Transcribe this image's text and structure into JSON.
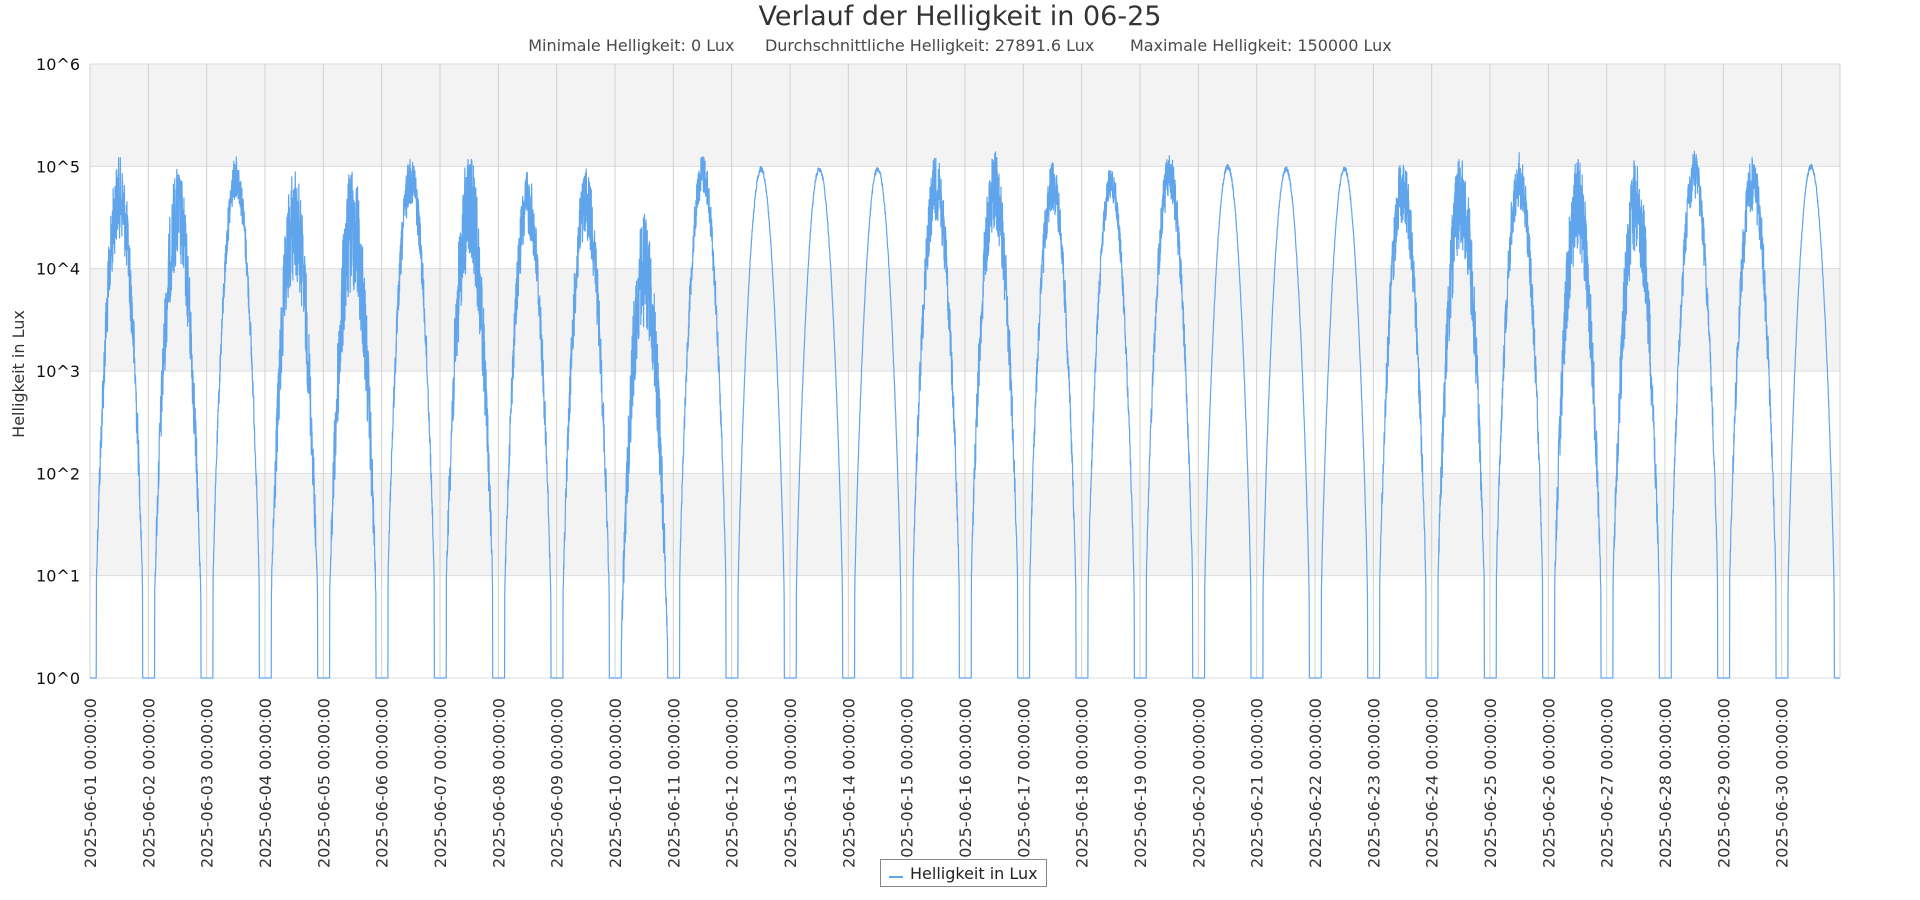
{
  "chart_data": {
    "type": "line",
    "title": "Verlauf der Helligkeit in 06-25",
    "subtitle": {
      "min": "Minimale Helligkeit: 0 Lux",
      "avg": "Durchschnittliche Helligkeit: 27891.6 Lux",
      "max": "Maximale Helligkeit: 150000 Lux"
    },
    "ylabel": "Helligkeit in Lux",
    "xlabel": "",
    "y_scale": "log",
    "ylim": [
      1,
      1000000
    ],
    "y_ticks": [
      {
        "value": 1,
        "label": "10^0"
      },
      {
        "value": 10,
        "label": "10^1"
      },
      {
        "value": 100,
        "label": "10^2"
      },
      {
        "value": 1000,
        "label": "10^3"
      },
      {
        "value": 10000,
        "label": "10^4"
      },
      {
        "value": 100000,
        "label": "10^5"
      },
      {
        "value": 1000000,
        "label": "10^6"
      }
    ],
    "xlim": [
      "2025-06-01 00:00",
      "2025-07-01 00:00"
    ],
    "x_ticks": [
      "2025-06-01 00:00:00",
      "2025-06-02 00:00:00",
      "2025-06-03 00:00:00",
      "2025-06-04 00:00:00",
      "2025-06-05 00:00:00",
      "2025-06-06 00:00:00",
      "2025-06-07 00:00:00",
      "2025-06-08 00:00:00",
      "2025-06-09 00:00:00",
      "2025-06-10 00:00:00",
      "2025-06-11 00:00:00",
      "2025-06-12 00:00:00",
      "2025-06-13 00:00:00",
      "2025-06-14 00:00:00",
      "2025-06-15 00:00:00",
      "2025-06-16 00:00:00",
      "2025-06-17 00:00:00",
      "2025-06-18 00:00:00",
      "2025-06-19 00:00:00",
      "2025-06-20 00:00:00",
      "2025-06-21 00:00:00",
      "2025-06-22 00:00:00",
      "2025-06-23 00:00:00",
      "2025-06-24 00:00:00",
      "2025-06-25 00:00:00",
      "2025-06-26 00:00:00",
      "2025-06-27 00:00:00",
      "2025-06-28 00:00:00",
      "2025-06-29 00:00:00",
      "2025-06-30 00:00:00"
    ],
    "grid": true,
    "alternating_bands": true,
    "legend_position": "bottom-center",
    "series": [
      {
        "name": "Helligkeit in Lux",
        "color": "#60a5ec",
        "x": [
          "2025-06-01",
          "2025-06-02",
          "2025-06-03",
          "2025-06-04",
          "2025-06-05",
          "2025-06-06",
          "2025-06-07",
          "2025-06-08",
          "2025-06-09",
          "2025-06-10",
          "2025-06-11",
          "2025-06-12",
          "2025-06-13",
          "2025-06-14",
          "2025-06-15",
          "2025-06-16",
          "2025-06-17",
          "2025-06-18",
          "2025-06-19",
          "2025-06-20",
          "2025-06-21",
          "2025-06-22",
          "2025-06-23",
          "2025-06-24",
          "2025-06-25",
          "2025-06-26",
          "2025-06-27",
          "2025-06-28",
          "2025-06-29",
          "2025-06-30"
        ],
        "daily_peak": [
          125000,
          100000,
          125000,
          100000,
          110000,
          130000,
          140000,
          90000,
          100000,
          35000,
          135000,
          100000,
          100000,
          100000,
          130000,
          145000,
          110000,
          100000,
          140000,
          105000,
          100000,
          100000,
          125000,
          140000,
          140000,
          120000,
          125000,
          140000,
          130000,
          105000
        ],
        "daily_low": [
          0,
          0,
          0,
          0,
          0,
          0,
          0,
          0,
          0,
          0,
          0,
          0,
          0,
          0,
          0,
          0,
          0,
          0,
          0,
          0,
          0,
          0,
          0,
          0,
          0,
          0,
          0,
          0,
          0,
          0
        ],
        "variability": [
          0.5,
          0.6,
          0.25,
          0.7,
          0.8,
          0.3,
          0.7,
          0.4,
          0.45,
          0.7,
          0.25,
          0.05,
          0.05,
          0.05,
          0.4,
          0.5,
          0.3,
          0.2,
          0.3,
          0.05,
          0.05,
          0.05,
          0.4,
          0.6,
          0.35,
          0.6,
          0.6,
          0.3,
          0.35,
          0.1
        ]
      }
    ]
  },
  "legend": {
    "label": "Helligkeit in Lux",
    "color": "#60a5ec"
  }
}
